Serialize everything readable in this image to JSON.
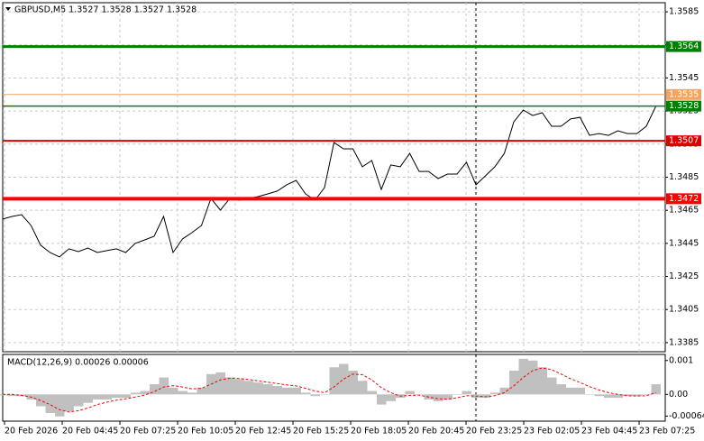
{
  "chart_data": [
    {
      "type": "line",
      "title": "GBPUSD,M5  1.3527 1.3528 1.3527 1.3528",
      "color": "#000000",
      "ylim": [
        1.33795,
        1.35905
      ],
      "yticks": [
        1.3585,
        1.3565,
        1.3545,
        1.3525,
        1.3505,
        1.3485,
        1.3465,
        1.3445,
        1.3425,
        1.3405,
        1.3385
      ],
      "grid": true,
      "values": [
        1.34597,
        1.34613,
        1.34624,
        1.34558,
        1.34439,
        1.34395,
        1.34368,
        1.34417,
        1.344,
        1.34422,
        1.34395,
        1.34406,
        1.34417,
        1.34395,
        1.3445,
        1.34471,
        1.34493,
        1.34613,
        1.34395,
        1.34477,
        1.34515,
        1.34558,
        1.34722,
        1.34651,
        1.34722,
        1.34711,
        1.34722,
        1.34733,
        1.34749,
        1.34766,
        1.34804,
        1.34831,
        1.34749,
        1.34711,
        1.34787,
        1.3506,
        1.35022,
        1.35022,
        1.34913,
        1.34951,
        1.34776,
        1.34924,
        1.34913,
        1.34994,
        1.34885,
        1.34885,
        1.34842,
        1.34869,
        1.34869,
        1.3494,
        1.34804,
        1.34858,
        1.34913,
        1.34994,
        1.35185,
        1.35256,
        1.35223,
        1.3524,
        1.35158,
        1.35158,
        1.35202,
        1.35212,
        1.35103,
        1.35114,
        1.35103,
        1.35131,
        1.35114,
        1.35114,
        1.35158,
        1.35278
      ],
      "levels": [
        {
          "value": 1.3564,
          "color": "#008000",
          "width": 3
        },
        {
          "value": 1.3535,
          "color": "#f4a460",
          "width": 1
        },
        {
          "value": 1.3528,
          "color": "#008000",
          "width": 1.5
        },
        {
          "value": 1.3507,
          "color": "#e00000",
          "width": 2
        },
        {
          "value": 1.3472,
          "color": "#ff0000",
          "width": 4
        }
      ]
    },
    {
      "type": "macd",
      "title": "MACD(12,26,9) 0.00026 0.00006",
      "ylim": [
        -0.00079,
        0.00118
      ],
      "yticks": [
        0.001,
        {
          "value": 0,
          "label": "0.00"
        },
        -0.00064
      ],
      "series": [
        {
          "name": "MACD",
          "color": "#c0c0c0",
          "values": [
            -3e-05,
            -5e-05,
            -5e-05,
            -0.00015,
            -0.00035,
            -0.00055,
            -0.00065,
            -0.0005,
            -0.00035,
            -0.00025,
            -0.00015,
            -0.00015,
            -0.0001,
            -0.0001,
            5e-05,
            0.0001,
            0.0003,
            0.0005,
            0.0002,
            0.0001,
            5e-05,
            0.0002,
            0.0006,
            0.00065,
            0.0005,
            0.00045,
            0.0004,
            0.00035,
            0.0003,
            0.00025,
            0.0002,
            0.0002,
            5e-05,
            -5e-05,
            0,
            0.0008,
            0.0009,
            0.0007,
            0.0004,
            0.0001,
            -0.0003,
            -0.0002,
            -0.0001,
            0.0001,
            0,
            -0.00015,
            -0.0002,
            -0.00015,
            0,
            0.0001,
            -0.0001,
            -0.0001,
            5e-05,
            0.0002,
            0.0007,
            0.00105,
            0.001,
            0.0008,
            0.0005,
            0.0003,
            0.0002,
            0.0002,
            0,
            -5e-05,
            -0.0001,
            -0.0001,
            -5e-05,
            -5e-05,
            0,
            0.0003
          ]
        },
        {
          "name": "Signal",
          "color": "#ff0000",
          "values": [
            0,
            0,
            -3e-05,
            -8e-05,
            -0.00018,
            -0.0003,
            -0.00045,
            -0.00052,
            -0.00048,
            -0.0004,
            -0.0003,
            -0.00023,
            -0.00017,
            -0.00013,
            -8e-05,
            -2e-05,
            8e-05,
            0.00022,
            0.00026,
            0.00022,
            0.00016,
            0.00018,
            0.0003,
            0.00043,
            0.00048,
            0.00047,
            0.00044,
            0.0004,
            0.00036,
            0.00032,
            0.00028,
            0.00025,
            0.00018,
            0.0001,
            5e-05,
            0.00022,
            0.00045,
            0.0006,
            0.00058,
            0.00043,
            0.0002,
            5e-05,
            -5e-05,
            -3e-05,
            -2e-05,
            -8e-05,
            -0.00013,
            -0.00014,
            -0.0001,
            -4e-05,
            -5e-05,
            -7e-05,
            -4e-05,
            5e-05,
            0.00025,
            0.0005,
            0.0007,
            0.00078,
            0.00073,
            0.0006,
            0.00046,
            0.00035,
            0.00023,
            0.00013,
            5e-05,
            0,
            -4e-05,
            -5e-05,
            -4e-05,
            5e-05
          ]
        }
      ],
      "x_axis_labels": [
        "20 Feb 2026",
        "20 Feb 04:45",
        "20 Feb 07:25",
        "20 Feb 10:05",
        "20 Feb 12:45",
        "20 Feb 15:25",
        "20 Feb 18:05",
        "20 Feb 20:45",
        "20 Feb 23:25",
        "23 Feb 02:05",
        "23 Feb 04:45",
        "23 Feb 07:25"
      ]
    }
  ]
}
